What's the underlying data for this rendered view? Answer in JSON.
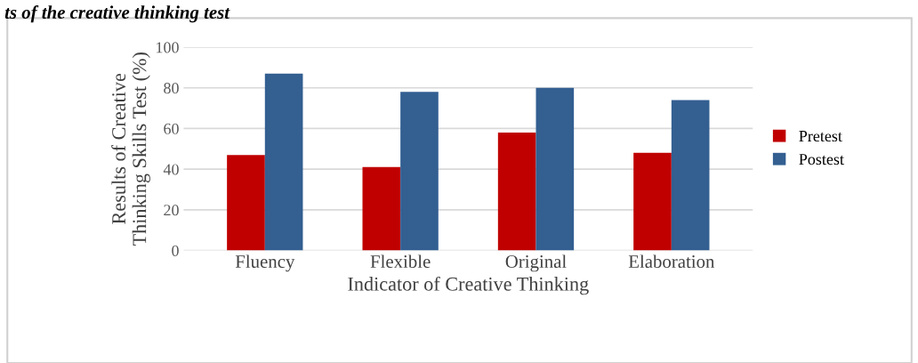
{
  "chart_data": {
    "type": "bar",
    "title": "ts of the creative thinking test",
    "xlabel": "Indicator of Creative Thinking",
    "ylabel": "Results of Creative\nThinking Skills Test (%)",
    "categories": [
      "Fluency",
      "Flexible",
      "Original",
      "Elaboration"
    ],
    "series": [
      {
        "name": "Pretest",
        "color": "#c00000",
        "values": [
          47,
          41,
          58,
          48
        ]
      },
      {
        "name": "Postest",
        "color": "#335f91",
        "values": [
          87,
          78,
          80,
          74
        ]
      }
    ],
    "ylim": [
      0,
      100
    ],
    "yticks": [
      0,
      20,
      40,
      60,
      80,
      100
    ],
    "grid": "y",
    "legend": "right"
  }
}
